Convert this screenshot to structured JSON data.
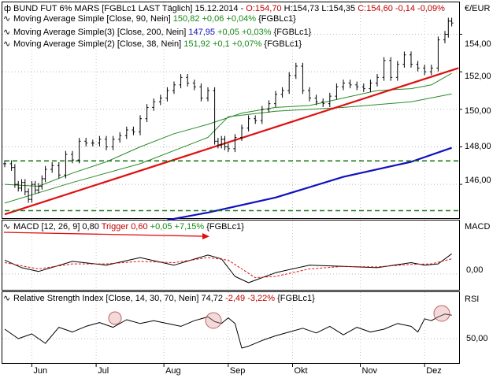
{
  "colors": {
    "price": "#000000",
    "trendline": "#e01010",
    "ma90": "#2a8a2a",
    "ma200": "#1010c0",
    "ma38": "#2a8a2a",
    "support": "#1a7a1a",
    "macd": "#000000",
    "trigger": "#e01010",
    "rsi": "#000000",
    "arrow": "#e01010",
    "highlight": "#c06060",
    "down": "#c00000",
    "up": "#00a000",
    "ma200_value": "#1010c0"
  },
  "main": {
    "header": {
      "title": "BUND FUT 6% MARS [FGBLc1 LAST Täglich] 15.12.2014 - ",
      "open": "O:154,70",
      "high": " H:154,73",
      "low": " L:154,35",
      "close": " C:154,60",
      "change": " -0,14",
      "change_pct": " -0,09%"
    },
    "legend": [
      {
        "label": "Moving Average Simple [Close, 90, Nein] ",
        "value": "150,82",
        "delta": " +0,06",
        "delta_pct": " +0,04%",
        "suffix": " {FGBLc1}"
      },
      {
        "label": "Moving Average Simple(3) [Close, 200, Nein] ",
        "value": "147,95",
        "delta": " +0,05",
        "delta_pct": " +0,03%",
        "suffix": " {FGBLc1}"
      },
      {
        "label": "Moving Average Simple(2) [Close, 38, Nein] ",
        "value": "151,92",
        "delta": " +0,1",
        "delta_pct": " +0,07%",
        "suffix": " {FGBLc1}"
      }
    ],
    "unit": "€/EUR",
    "yticks": [
      "154,00",
      "152,00",
      "150,00",
      "148,00",
      "146,00"
    ]
  },
  "macd": {
    "label": "MACD [12, 26, 9] 0,80 ",
    "trigger": "Trigger 0,60",
    "delta": " +0,05",
    "delta_pct": " +7,15%",
    "suffix": " {FGBLc1}",
    "unit": "MACD",
    "ytick": "0,00"
  },
  "rsi": {
    "label": "Relative Strength Index [Close, 14, 30, 70, Nein] 74,72",
    "delta": " -2,49",
    "delta_pct": " -3,22%",
    "suffix": " {FGBLc1}",
    "unit": "RSI",
    "ytick": "50,00"
  },
  "xaxis": {
    "months": [
      "Jun",
      "Jul",
      "Aug",
      "Sep",
      "Okt",
      "Nov",
      "Dez"
    ]
  },
  "chart_data": [
    {
      "type": "line",
      "title": "BUND FUT 6% MARS [FGBLc1 LAST Täglich] 15.12.2014",
      "ylabel": "€/EUR",
      "ylim": [
        144.2,
        155.7
      ],
      "yticks": [
        146,
        148,
        150,
        152,
        154
      ],
      "x_months": [
        "Jun",
        "Jul",
        "Aug",
        "Sep",
        "Okt",
        "Nov",
        "Dez"
      ],
      "x_month_positions": [
        8,
        27,
        47,
        66,
        85,
        105,
        124
      ],
      "last_bar": {
        "open": 154.7,
        "high": 154.73,
        "low": 154.35,
        "close": 154.6,
        "change": -0.14,
        "change_pct": -0.09
      },
      "price_x": [
        0,
        2,
        3,
        4,
        5,
        6,
        7,
        8,
        9,
        10,
        11,
        12,
        14,
        16,
        18,
        20,
        22,
        24,
        26,
        28,
        30,
        32,
        34,
        36,
        38,
        40,
        42,
        44,
        46,
        48,
        50,
        52,
        54,
        56,
        58,
        60,
        62,
        63,
        64,
        65,
        66,
        68,
        70,
        72,
        74,
        76,
        78,
        80,
        82,
        84,
        86,
        88,
        90,
        92,
        94,
        96,
        98,
        100,
        102,
        104,
        106,
        108,
        110,
        112,
        114,
        116,
        118,
        120,
        122,
        124,
        126,
        128,
        130,
        131,
        132
      ],
      "price_close": [
        147.1,
        146.9,
        146.0,
        145.8,
        146.1,
        145.6,
        145.2,
        146.0,
        145.7,
        145.9,
        146.3,
        146.8,
        147.0,
        146.5,
        147.6,
        147.3,
        148.3,
        148.2,
        148.2,
        148.4,
        148.0,
        148.4,
        148.6,
        148.9,
        148.8,
        149.5,
        150.1,
        150.4,
        150.6,
        151.0,
        151.3,
        151.7,
        151.4,
        151.2,
        150.6,
        151.0,
        148.3,
        148.1,
        148.4,
        148.0,
        147.9,
        148.5,
        149.0,
        149.5,
        149.4,
        150.0,
        150.3,
        150.8,
        151.0,
        151.8,
        152.3,
        151.0,
        150.6,
        150.4,
        150.3,
        150.7,
        151.2,
        151.4,
        151.3,
        151.2,
        151.1,
        151.4,
        151.7,
        152.6,
        151.7,
        152.4,
        152.9,
        152.4,
        152.2,
        152.0,
        152.2,
        153.7,
        154.0,
        154.7,
        154.6
      ],
      "series": [
        {
          "name": "Moving Average Simple [Close, 90, Nein]",
          "last": 150.82,
          "x": [
            0,
            20,
            40,
            60,
            66,
            80,
            100,
            120,
            132
          ],
          "values": [
            145.0,
            146.1,
            147.1,
            148.5,
            149.6,
            149.9,
            150.1,
            150.4,
            150.82
          ]
        },
        {
          "name": "Moving Average Simple(3) [Close, 200, Nein]",
          "last": 147.95,
          "x": [
            48,
            60,
            80,
            100,
            120,
            132
          ],
          "values": [
            144.1,
            144.5,
            145.3,
            146.4,
            147.2,
            147.95
          ]
        },
        {
          "name": "Moving Average Simple(2) [Close, 38, Nein]",
          "last": 151.92,
          "x": [
            0,
            10,
            20,
            30,
            40,
            50,
            60,
            70,
            80,
            90,
            100,
            110,
            120,
            126,
            132
          ],
          "values": [
            146.0,
            145.9,
            146.6,
            147.2,
            148.0,
            148.7,
            149.2,
            149.8,
            150.1,
            150.2,
            150.6,
            151.0,
            151.1,
            151.3,
            151.92
          ]
        },
        {
          "name": "",
          "x": [
            0,
            134
          ],
          "values": [
            144.4,
            152.2
          ]
        },
        {
          "name": "",
          "x": [
            0,
            134
          ],
          "values": [
            147.25,
            147.25
          ]
        },
        {
          "name": "",
          "x": [
            0,
            134
          ],
          "values": [
            144.6,
            144.6
          ]
        }
      ]
    },
    {
      "type": "line",
      "title": "MACD [12, 26, 9] 0,80",
      "ylabel": "MACD",
      "ylim": [
        -0.6,
        1.5
      ],
      "yticks": [
        0.0
      ],
      "series": [
        {
          "name": "MACD [12, 26, 9]",
          "last": 0.8,
          "x": [
            0,
            5,
            10,
            20,
            30,
            40,
            50,
            60,
            64,
            68,
            72,
            76,
            80,
            90,
            100,
            110,
            120,
            124,
            128,
            132
          ],
          "values": [
            0.55,
            0.25,
            0.1,
            0.5,
            0.35,
            0.65,
            0.35,
            0.75,
            0.6,
            -0.1,
            -0.35,
            -0.15,
            0.05,
            0.35,
            0.3,
            0.25,
            0.45,
            0.35,
            0.4,
            0.8
          ]
        },
        {
          "name": "Trigger",
          "last": 0.6,
          "x": [
            0,
            10,
            20,
            30,
            40,
            50,
            60,
            66,
            70,
            74,
            80,
            90,
            100,
            110,
            120,
            126,
            132
          ],
          "values": [
            0.45,
            0.2,
            0.4,
            0.4,
            0.5,
            0.45,
            0.65,
            0.55,
            0.2,
            -0.15,
            -0.1,
            0.2,
            0.3,
            0.28,
            0.38,
            0.4,
            0.6
          ]
        }
      ]
    },
    {
      "type": "line",
      "title": "Relative Strength Index [Close, 14, 30, 70, Nein] 74,72",
      "ylabel": "RSI",
      "ylim": [
        25,
        85
      ],
      "yticks": [
        50
      ],
      "series": [
        {
          "name": "Relative Strength Index [Close, 14, 30, 70, Nein]",
          "last": 74.72,
          "x": [
            0,
            4,
            8,
            12,
            16,
            20,
            24,
            28,
            32,
            36,
            40,
            44,
            48,
            52,
            56,
            60,
            62,
            64,
            66,
            68,
            70,
            72,
            76,
            80,
            84,
            88,
            92,
            96,
            100,
            104,
            108,
            112,
            116,
            120,
            122,
            124,
            126,
            128,
            130,
            132
          ],
          "values": [
            60,
            50,
            55,
            45,
            62,
            57,
            63,
            67,
            62,
            70,
            66,
            69,
            66,
            63,
            69,
            73,
            68,
            66,
            72,
            66,
            40,
            42,
            48,
            53,
            57,
            61,
            56,
            63,
            54,
            62,
            57,
            60,
            66,
            63,
            57,
            71,
            69,
            73,
            76,
            74.72
          ]
        }
      ]
    }
  ]
}
